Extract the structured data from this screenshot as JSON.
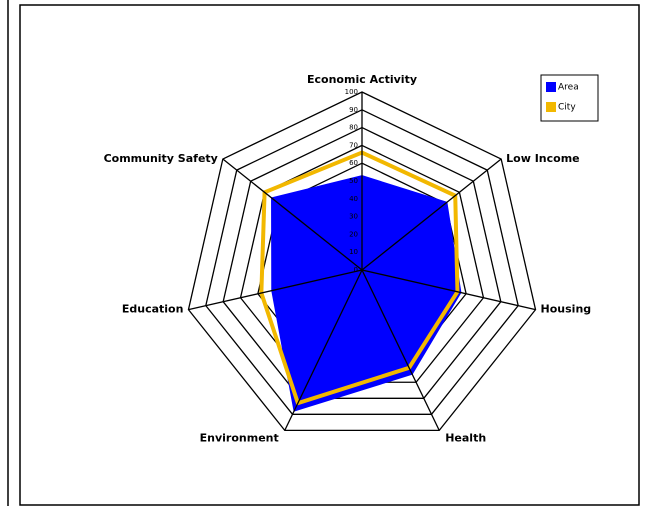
{
  "chart_data": {
    "type": "radar",
    "categories": [
      "Economic Activity",
      "Low Income",
      "Housing",
      "Health",
      "Environment",
      "Education",
      "Community Safety"
    ],
    "series": [
      {
        "name": "Area",
        "color": "#0000ff",
        "values": [
          53,
          61,
          57,
          65,
          88,
          52,
          65
        ]
      },
      {
        "name": "City",
        "color": "#f2b800",
        "values": [
          66,
          67,
          55,
          61,
          83,
          58,
          70
        ]
      }
    ],
    "ylim": [
      0,
      100
    ],
    "yticks": [
      0,
      10,
      20,
      30,
      40,
      50,
      60,
      70,
      80,
      90,
      100
    ],
    "legend": "upper right"
  }
}
